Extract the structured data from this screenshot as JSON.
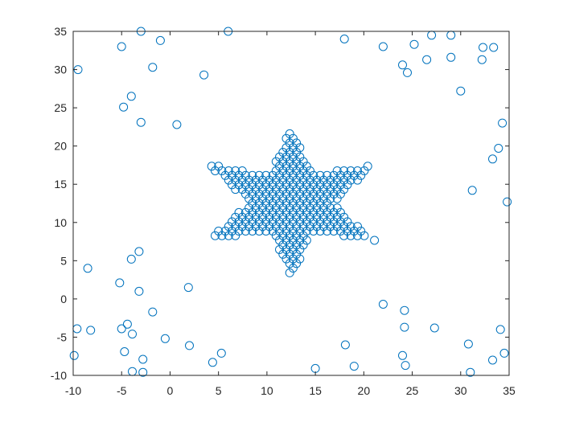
{
  "chart_data": {
    "type": "scatter",
    "title": "",
    "xlabel": "",
    "ylabel": "",
    "xlim": [
      -10,
      35
    ],
    "ylim": [
      -10,
      35
    ],
    "xticks": [
      -10,
      -5,
      0,
      5,
      10,
      15,
      20,
      25,
      30,
      35
    ],
    "yticks": [
      -10,
      -5,
      0,
      5,
      10,
      15,
      20,
      25,
      30,
      35
    ],
    "grid": false,
    "legend": "none",
    "marker": "open-circle",
    "color": "#0072BD",
    "series": [
      {
        "name": "",
        "points": [
          [
            -9.5,
            30
          ],
          [
            -5,
            33
          ],
          [
            -3,
            35
          ],
          [
            -1,
            33.8
          ],
          [
            -1.8,
            30.3
          ],
          [
            3.5,
            29.3
          ],
          [
            6,
            35
          ],
          [
            -4,
            26.5
          ],
          [
            -4.8,
            25.1
          ],
          [
            -3,
            23.1
          ],
          [
            0.7,
            22.8
          ],
          [
            18,
            34
          ],
          [
            22,
            33
          ],
          [
            25.2,
            33.3
          ],
          [
            27,
            34.5
          ],
          [
            29,
            34.5
          ],
          [
            32.3,
            32.9
          ],
          [
            33.4,
            32.9
          ],
          [
            26.5,
            31.3
          ],
          [
            29,
            31.6
          ],
          [
            32.2,
            31.3
          ],
          [
            24,
            30.6
          ],
          [
            24.5,
            29.6
          ],
          [
            30,
            27.2
          ],
          [
            34.3,
            23
          ],
          [
            33.9,
            19.7
          ],
          [
            33.3,
            18.3
          ],
          [
            31.2,
            14.2
          ],
          [
            34.8,
            12.7
          ],
          [
            -8.5,
            4
          ],
          [
            -4,
            5.2
          ],
          [
            -3.2,
            6.2
          ],
          [
            -5.2,
            2.1
          ],
          [
            -3.2,
            1
          ],
          [
            1.9,
            1.5
          ],
          [
            -1.8,
            -1.7
          ],
          [
            -9.6,
            -3.9
          ],
          [
            -8.2,
            -4.1
          ],
          [
            -5,
            -3.9
          ],
          [
            -4.4,
            -3.3
          ],
          [
            -3.9,
            -4.6
          ],
          [
            -0.5,
            -5.2
          ],
          [
            -9.9,
            -7.4
          ],
          [
            -4.7,
            -6.9
          ],
          [
            -2.8,
            -7.9
          ],
          [
            -3.9,
            -9.5
          ],
          [
            -2.8,
            -9.6
          ],
          [
            2,
            -6.1
          ],
          [
            5.3,
            -7.1
          ],
          [
            4.4,
            -8.3
          ],
          [
            22,
            -0.7
          ],
          [
            24.2,
            -1.5
          ],
          [
            24.2,
            -3.7
          ],
          [
            27.3,
            -3.8
          ],
          [
            18.1,
            -6
          ],
          [
            15,
            -9.1
          ],
          [
            19,
            -8.8
          ],
          [
            24,
            -7.4
          ],
          [
            24.3,
            -8.7
          ],
          [
            30.8,
            -5.9
          ],
          [
            31,
            -9.6
          ],
          [
            33.3,
            -8
          ],
          [
            34.1,
            -4
          ],
          [
            34.5,
            -7.1
          ]
        ]
      }
    ],
    "star_shape": {
      "center": [
        12.5,
        12.6
      ],
      "outer_radius": 10,
      "inner_radius": 4.3,
      "spacing": 0.7,
      "note_points": "dense hexagonal grid of open circles filling a six-pointed star"
    }
  }
}
